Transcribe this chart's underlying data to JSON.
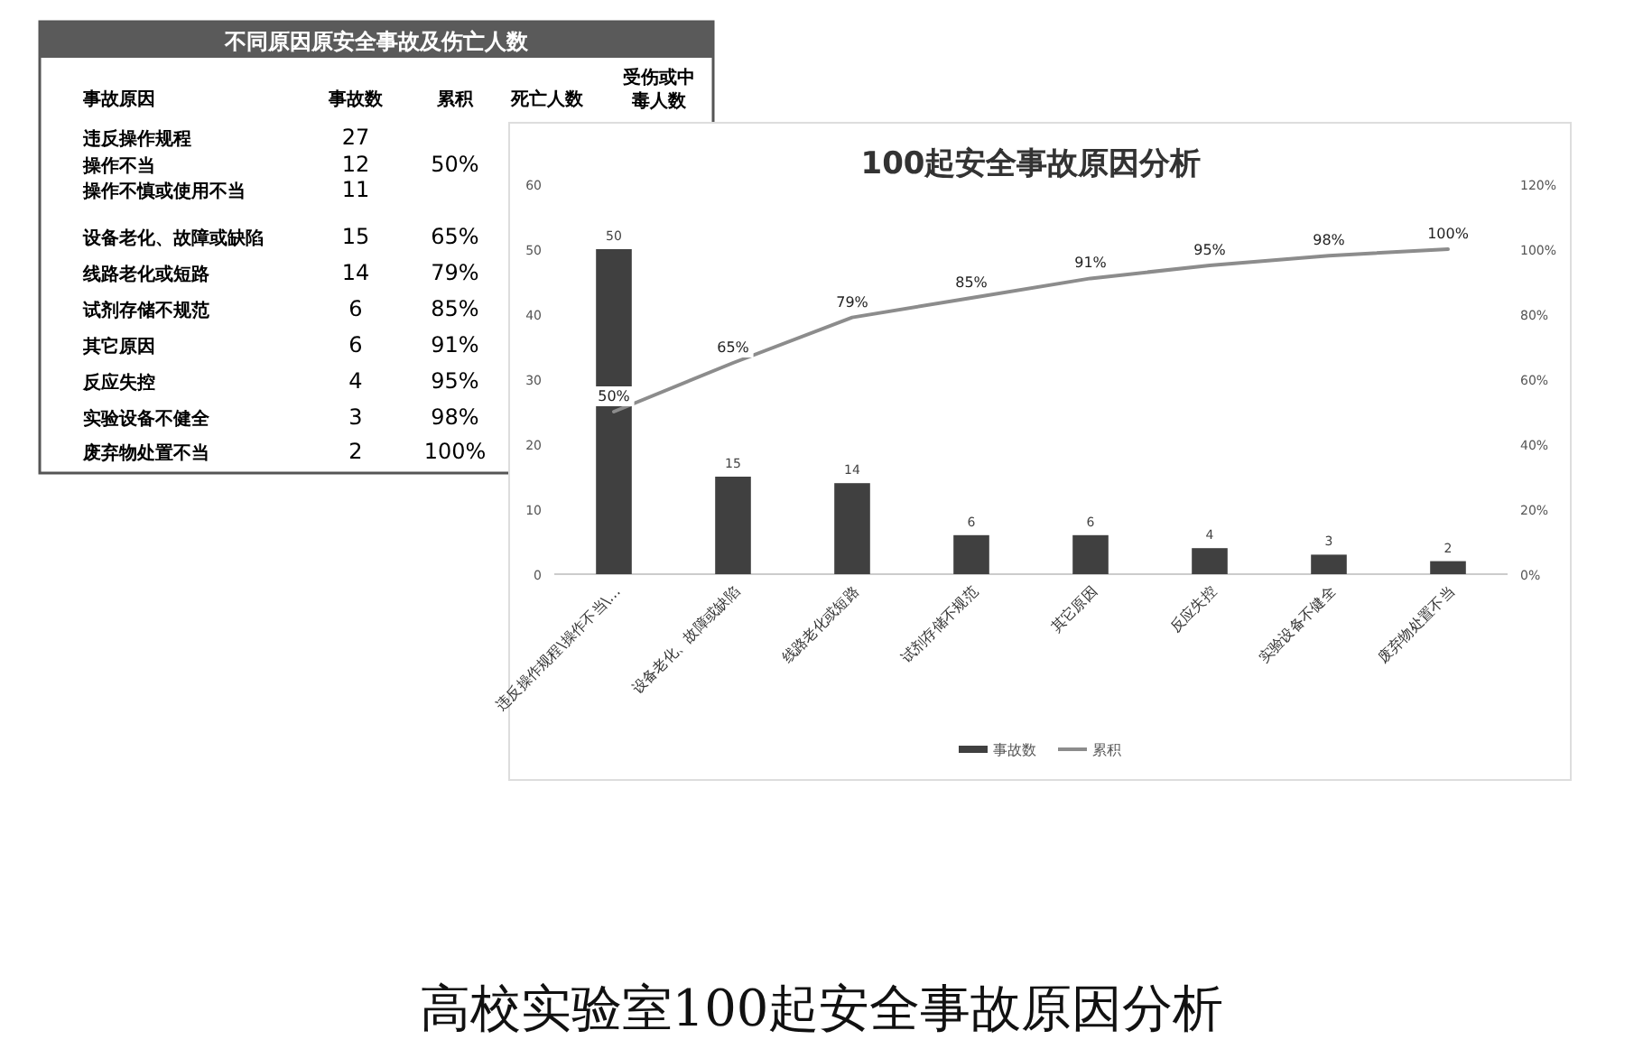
{
  "chart_data": [
    {
      "type": "other",
      "title": "不同原因原安全事故及伤亡人数",
      "xlabel": "事故原因",
      "categories": [
        "违反操作规程",
        "操作不当",
        "操作不慎或使用不当",
        "设备老化、故障或缺陷",
        "线路老化或短路",
        "试剂存储不规范",
        "其它原因",
        "反应失控",
        "实验设备不健全",
        "废弃物处置不当"
      ],
      "series": [
        {
          "name": "事故数",
          "values": [
            27,
            12,
            11,
            15,
            14,
            6,
            6,
            4,
            3,
            2
          ]
        },
        {
          "name": "累积",
          "values": [
            null,
            50,
            null,
            65,
            79,
            85,
            91,
            95,
            98,
            100
          ],
          "value_labels": [
            null,
            "50%",
            null,
            "65%",
            "79%",
            "85%",
            "91%",
            "95%",
            "98%",
            "100%"
          ]
        },
        {
          "name": "死亡人数",
          "values": [
            null,
            null,
            null,
            null,
            null,
            null,
            null,
            null,
            null,
            null
          ]
        },
        {
          "name": "受伤或中毒人数",
          "values": [
            null,
            null,
            null,
            null,
            null,
            null,
            null,
            null,
            null,
            null
          ]
        }
      ],
      "data_labels": true
    },
    {
      "type": "bar",
      "title": "100起安全事故原因分析",
      "categories": [
        "违反操作规程\\操作不当\\…",
        "设备老化、故障或缺陷",
        "线路老化或短路",
        "试剂存储不规范",
        "其它原因",
        "反应失控",
        "实验设备不健全",
        "废弃物处置不当"
      ],
      "series": [
        {
          "name": "事故数",
          "type": "bar",
          "color": "#404040",
          "values": [
            50,
            15,
            14,
            6,
            6,
            4,
            3,
            2
          ],
          "value_labels": [
            "50",
            "15",
            "14",
            "6",
            "6",
            "4",
            "3",
            "2"
          ]
        },
        {
          "name": "累积",
          "type": "line",
          "axis": "y2",
          "color": "#8c8c8c",
          "values": [
            50,
            65,
            79,
            85,
            91,
            95,
            98,
            100
          ],
          "value_labels": [
            "50%",
            "65%",
            "79%",
            "85%",
            "91%",
            "95%",
            "98%",
            "100%"
          ]
        }
      ],
      "ylim": [
        0,
        60
      ],
      "yticks": [
        0,
        10,
        20,
        30,
        40,
        50,
        60
      ],
      "y2lim": [
        0,
        120
      ],
      "y2ticks": [
        {
          "value": 0,
          "label": "0%"
        },
        {
          "value": 20,
          "label": "20%"
        },
        {
          "value": 40,
          "label": "40%"
        },
        {
          "value": 60,
          "label": "60%"
        },
        {
          "value": 80,
          "label": "80%"
        },
        {
          "value": 100,
          "label": "100%"
        },
        {
          "value": 120,
          "label": "120%"
        }
      ],
      "grid": false,
      "legend": "bottom",
      "marker": "none",
      "line_style": "solid",
      "annotations": [
        "高校实验室100起安全事故原因分析"
      ]
    }
  ]
}
